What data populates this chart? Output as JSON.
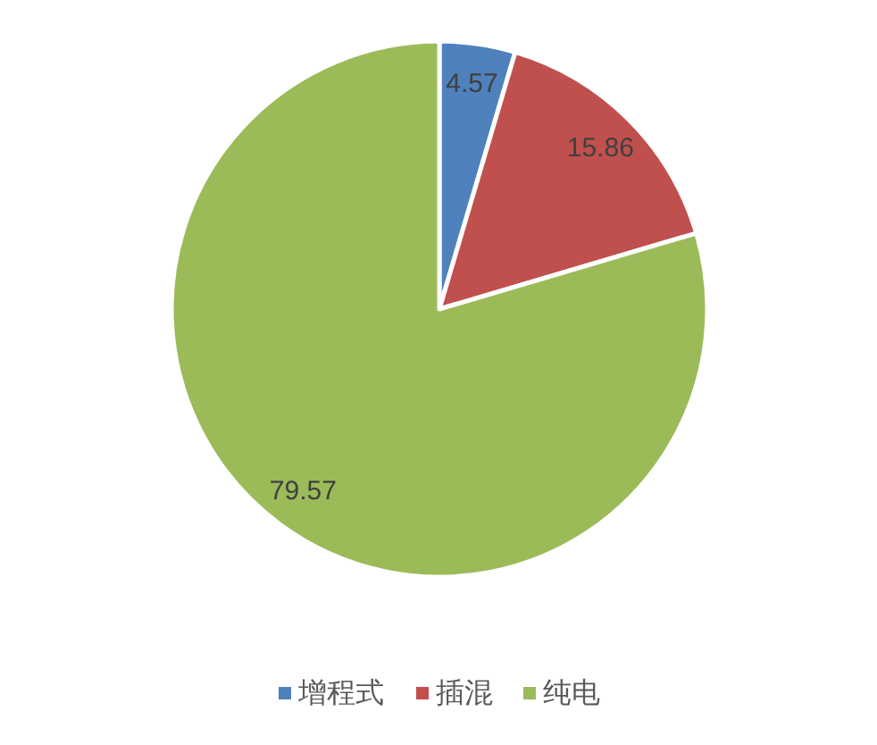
{
  "chart_data": {
    "type": "pie",
    "categories": [
      "增程式",
      "插混",
      "纯电"
    ],
    "values": [
      4.57,
      15.86,
      79.57
    ],
    "colors": [
      "#4f81bd",
      "#c0504d",
      "#9bbb59"
    ],
    "data_labels": true,
    "legend": "bottom"
  }
}
